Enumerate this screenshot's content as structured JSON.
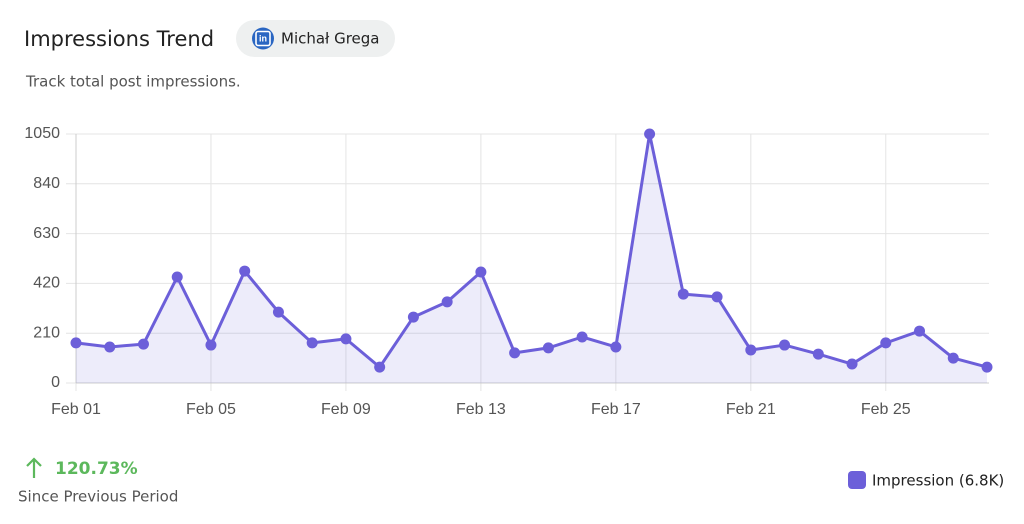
{
  "header": {
    "title": "Impressions Trend",
    "author": "Michał Grega",
    "subtitle": "Track total post impressions."
  },
  "footer": {
    "change": "120.73%",
    "change_label": "Since Previous Period"
  },
  "chart_data": {
    "type": "line",
    "categories": [
      "Feb 01",
      null,
      null,
      null,
      "Feb 05",
      null,
      null,
      null,
      "Feb 09",
      null,
      null,
      null,
      "Feb 13",
      null,
      null,
      null,
      "Feb 17",
      null,
      null,
      null,
      "Feb 21",
      null,
      null,
      null,
      "Feb 25",
      null,
      null,
      null
    ],
    "series": [
      {
        "name": "Impression (6.8K)",
        "color": "#6c5fd9",
        "values": [
          169,
          152,
          164,
          447,
          160,
          472,
          299,
          169,
          186,
          67,
          278,
          342,
          468,
          127,
          148,
          194,
          152,
          1050,
          375,
          363,
          139,
          160,
          122,
          80,
          169,
          219,
          105,
          67
        ]
      }
    ],
    "ylim": [
      0,
      1050
    ],
    "yticks": [
      0,
      210,
      420,
      630,
      840,
      1050
    ],
    "grid": true,
    "fill_area": true,
    "legend": "bottom-right"
  }
}
